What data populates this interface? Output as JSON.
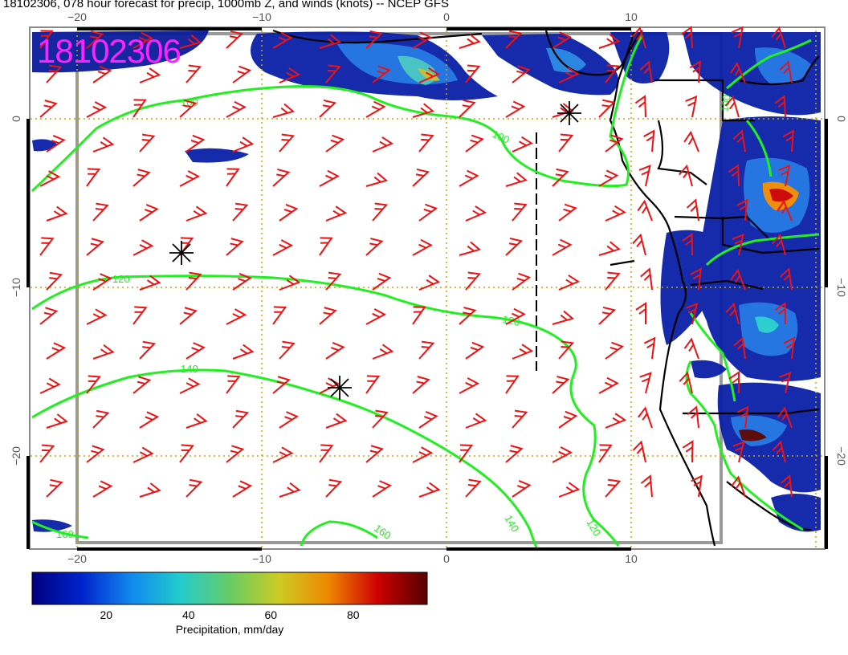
{
  "title": "18102306, 078 hour forecast for precip, 1000mb Z, and winds (knots) -- NCEP GFS",
  "stamp": "18102306",
  "x_ticks": [
    {
      "label": "−20",
      "lon": -20
    },
    {
      "label": "−10",
      "lon": -10
    },
    {
      "label": "0",
      "lon": 0
    },
    {
      "label": "10",
      "lon": 10
    }
  ],
  "y_ticks": [
    {
      "label": "0",
      "lat": 0
    },
    {
      "label": "−10",
      "lat": -10
    },
    {
      "label": "−20",
      "lat": -20
    }
  ],
  "contours": [
    {
      "label": "100",
      "color": "#22ee22"
    },
    {
      "label": "120",
      "color": "#22ee22"
    },
    {
      "label": "140",
      "color": "#22ee22"
    },
    {
      "label": "160",
      "color": "#22ee22"
    }
  ],
  "colorbar": {
    "title": "Precipitation, mm/day",
    "ticks": [
      "20",
      "40",
      "60",
      "80"
    ],
    "tick_values": [
      20,
      40,
      60,
      80
    ],
    "min": 2,
    "max": 98,
    "colors": [
      "#000080",
      "#0022cc",
      "#1188ee",
      "#22cccc",
      "#66cc66",
      "#cccc22",
      "#ee8800",
      "#cc0000",
      "#550000"
    ]
  },
  "colors": {
    "wind_barb": "#ee1111",
    "contour": "#22ee22",
    "grid": "#c9a800",
    "stamp": "#ff22ff",
    "coast": "#000000"
  },
  "icons": [
    "low-pressure-star-icon",
    "wind-barb-icon"
  ]
}
